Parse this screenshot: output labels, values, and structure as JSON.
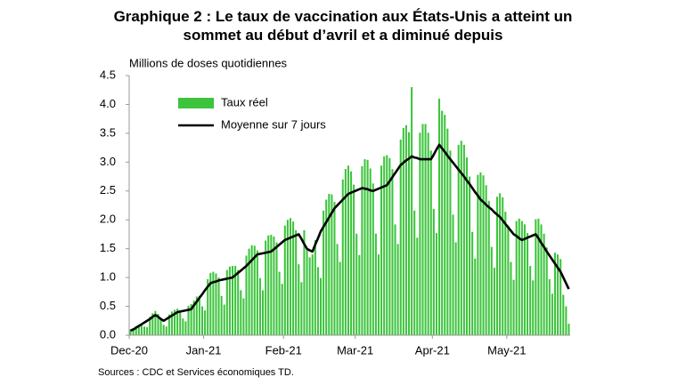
{
  "chart_data": {
    "type": "bar",
    "title": "Graphique 2 : Le taux de vaccination aux États-Unis a atteint un sommet au début d’avril et a diminué depuis",
    "y_label": "Millions de doses quotidiennes",
    "source": "Sources : CDC  et Services économiques  TD.",
    "categories": [
      "Dec-20",
      null,
      null,
      null,
      null,
      null,
      null,
      null,
      null,
      null,
      null,
      null,
      null,
      null,
      null,
      null,
      null,
      null,
      null,
      null,
      null,
      null,
      null,
      null,
      null,
      null,
      null,
      "Jan-21",
      null,
      null,
      null,
      null,
      null,
      null,
      null,
      null,
      null,
      null,
      null,
      null,
      null,
      null,
      null,
      null,
      null,
      null,
      null,
      null,
      null,
      null,
      null,
      null,
      null,
      null,
      null,
      null,
      "Feb-21",
      null,
      null,
      null,
      null,
      null,
      null,
      null,
      null,
      null,
      null,
      null,
      null,
      null,
      null,
      null,
      null,
      null,
      null,
      null,
      null,
      null,
      null,
      null,
      null,
      null,
      "Mar-21",
      null,
      null,
      null,
      null,
      null,
      null,
      null,
      null,
      null,
      null,
      null,
      null,
      null,
      null,
      null,
      null,
      null,
      null,
      null,
      null,
      null,
      null,
      null,
      null,
      null,
      null,
      null,
      "Apr-21",
      null,
      null,
      null,
      null,
      null,
      null,
      null,
      null,
      null,
      null,
      null,
      null,
      null,
      null,
      null,
      null,
      null,
      null,
      null,
      null,
      null,
      null,
      null,
      null,
      null,
      null,
      "May-21",
      null,
      null,
      null,
      null,
      null,
      null,
      null,
      null,
      null,
      null,
      null,
      null,
      null,
      null,
      null,
      null,
      null,
      null,
      null,
      null,
      null,
      null
    ],
    "series": [
      {
        "name": "Taux réel",
        "type": "bar",
        "color": "#3cc43c",
        "values": [
          0.1,
          0.12,
          0.16,
          0.18,
          0.2,
          0.15,
          0.14,
          0.32,
          0.38,
          0.42,
          0.37,
          0.3,
          0.18,
          0.15,
          0.36,
          0.41,
          0.44,
          0.46,
          0.43,
          0.29,
          0.24,
          0.51,
          0.54,
          0.6,
          0.67,
          0.68,
          0.5,
          0.43,
          0.97,
          1.08,
          1.1,
          1.07,
          1.0,
          0.68,
          0.53,
          1.13,
          1.19,
          1.2,
          1.2,
          1.13,
          0.78,
          0.64,
          1.38,
          1.5,
          1.56,
          1.55,
          1.47,
          0.99,
          0.78,
          1.64,
          1.73,
          1.74,
          1.71,
          1.61,
          1.1,
          0.89,
          1.9,
          2.0,
          2.03,
          1.97,
          1.82,
          1.23,
          0.92,
          1.82,
          1.5,
          1.35,
          1.4,
          1.65,
          1.18,
          0.99,
          2.16,
          2.35,
          2.45,
          2.44,
          2.31,
          1.58,
          1.27,
          2.7,
          2.88,
          2.94,
          2.84,
          2.61,
          1.76,
          1.39,
          2.93,
          3.05,
          3.04,
          2.89,
          2.63,
          1.76,
          1.4,
          2.94,
          3.1,
          3.12,
          3.07,
          2.88,
          1.92,
          1.58,
          3.39,
          3.59,
          3.64,
          3.52,
          4.3,
          2.16,
          1.69,
          3.51,
          3.66,
          3.66,
          3.51,
          3.2,
          2.19,
          1.77,
          4.1,
          3.89,
          3.82,
          3.58,
          3.2,
          2.09,
          1.61,
          3.3,
          3.37,
          3.3,
          3.08,
          2.75,
          1.79,
          1.33,
          2.78,
          2.82,
          2.77,
          2.6,
          2.33,
          1.53,
          1.17,
          2.4,
          2.46,
          2.39,
          2.14,
          1.9,
          1.27,
          0.96,
          1.98,
          2.02,
          1.98,
          1.92,
          1.77,
          1.2,
          0.95,
          2.01,
          2.02,
          1.92,
          1.76,
          1.52,
          0.97,
          0.72,
          1.43,
          1.4,
          1.32,
          0.7,
          0.5,
          0.2
        ]
      },
      {
        "name": "Moyenne sur 7 jours",
        "type": "line",
        "color": "#000000",
        "values": [
          0.08,
          0.1,
          0.13,
          0.16,
          0.19,
          0.22,
          0.25,
          0.28,
          0.32,
          0.35,
          0.32,
          0.28,
          0.25,
          0.28,
          0.31,
          0.34,
          0.37,
          0.4,
          0.41,
          0.42,
          0.43,
          0.44,
          0.45,
          0.52,
          0.58,
          0.65,
          0.71,
          0.78,
          0.84,
          0.9,
          0.92,
          0.93,
          0.95,
          0.96,
          0.97,
          0.98,
          0.99,
          1.0,
          1.04,
          1.08,
          1.12,
          1.16,
          1.2,
          1.25,
          1.3,
          1.35,
          1.4,
          1.41,
          1.42,
          1.43,
          1.44,
          1.45,
          1.49,
          1.53,
          1.57,
          1.61,
          1.65,
          1.67,
          1.69,
          1.71,
          1.73,
          1.75,
          1.67,
          1.58,
          1.5,
          1.47,
          1.45,
          1.57,
          1.68,
          1.8,
          1.88,
          1.96,
          2.04,
          2.12,
          2.2,
          2.25,
          2.3,
          2.35,
          2.4,
          2.45,
          2.47,
          2.49,
          2.51,
          2.53,
          2.55,
          2.54,
          2.53,
          2.51,
          2.5,
          2.52,
          2.54,
          2.56,
          2.58,
          2.6,
          2.67,
          2.74,
          2.81,
          2.88,
          2.95,
          2.99,
          3.03,
          3.06,
          3.1,
          3.08,
          3.07,
          3.05,
          3.05,
          3.05,
          3.05,
          3.05,
          3.13,
          3.22,
          3.3,
          3.24,
          3.18,
          3.11,
          3.05,
          2.99,
          2.93,
          2.87,
          2.81,
          2.75,
          2.68,
          2.62,
          2.55,
          2.48,
          2.42,
          2.35,
          2.31,
          2.26,
          2.22,
          2.18,
          2.13,
          2.09,
          2.05,
          1.99,
          1.93,
          1.87,
          1.81,
          1.75,
          1.72,
          1.68,
          1.65,
          1.67,
          1.69,
          1.71,
          1.73,
          1.75,
          1.68,
          1.6,
          1.53,
          1.45,
          1.38,
          1.31,
          1.24,
          1.17,
          1.1,
          1.0,
          0.9,
          0.8
        ]
      }
    ],
    "ylim": [
      0,
      4.5
    ],
    "yticks": [
      {
        "value": 0,
        "label": "0.0"
      },
      0.5,
      {
        "value": 1,
        "label": "1.0"
      },
      1.5,
      {
        "value": 2,
        "label": "2.0"
      },
      2.5,
      {
        "value": 3,
        "label": "3.0"
      },
      3.5,
      {
        "value": 4,
        "label": "4.0"
      },
      4.5
    ],
    "grid": false,
    "legend": "top-left"
  }
}
